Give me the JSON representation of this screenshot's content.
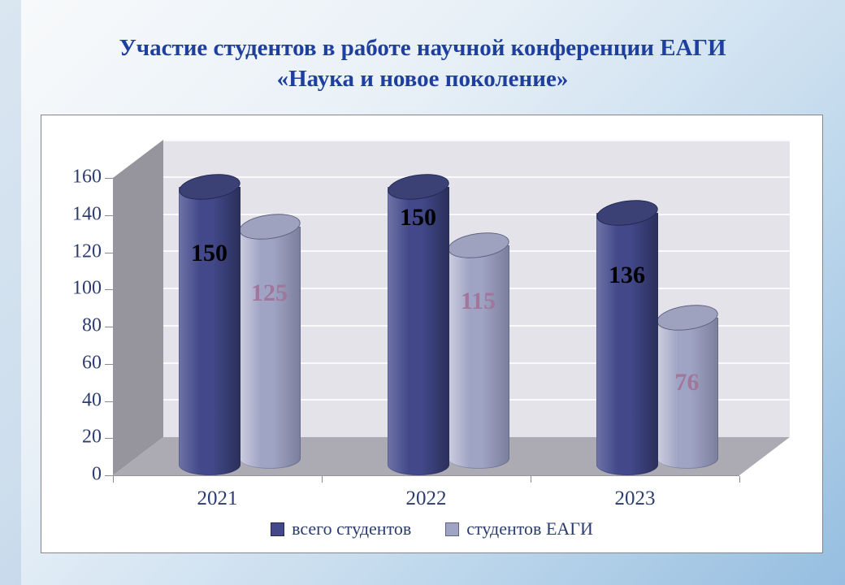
{
  "slide": {
    "title_line1": "Участие студентов в работе научной конференции ЕАГИ",
    "title_line2": "«Наука и новое поколение»"
  },
  "chart_data": {
    "type": "bar",
    "subtype": "3d-cylinder-clustered",
    "title": "Участие студентов в работе научной конференции ЕАГИ «Наука и новое поколение»",
    "categories": [
      "2021",
      "2022",
      "2023"
    ],
    "series": [
      {
        "name": "всего студентов",
        "values": [
          150,
          150,
          136
        ],
        "color": "#424889",
        "color_light": "#6E74A6",
        "color_dark": "#2A2F5A",
        "cap_color": "#3B4175",
        "cap_border": "#242950",
        "label_color": "#000000"
      },
      {
        "name": "студентов ЕАГИ",
        "values": [
          125,
          115,
          76
        ],
        "color": "#A0A4C4",
        "color_light": "#CDD0E0",
        "color_dark": "#7B7E9B",
        "cap_color": "#9EA2BE",
        "cap_border": "#5F6280",
        "label_color": "#A0779A"
      }
    ],
    "xlabel": "",
    "ylabel": "",
    "ylim": [
      0,
      160
    ],
    "y_ticks": [
      0,
      20,
      40,
      60,
      80,
      100,
      120,
      140,
      160
    ],
    "grid": true,
    "legend_position": "bottom"
  },
  "colors": {
    "slide_gradient": [
      "#F8FAFB",
      "#E8F0F7",
      "#C6DCEE",
      "#96BEE0"
    ],
    "left_strip": "rgba(100,150,200,0.20)",
    "box_border": "#85858B",
    "box_bg": "#FFFFFF",
    "back_wall": "#E4E3EA",
    "side_wall": "#96959E",
    "floor": "#ACABB3",
    "gridline": "#FAFAFC",
    "tick": "#8A8A94",
    "axis_text": "#2C3C70",
    "title_text": "#1F3F9E",
    "legend_text": "#2B3C6F"
  }
}
